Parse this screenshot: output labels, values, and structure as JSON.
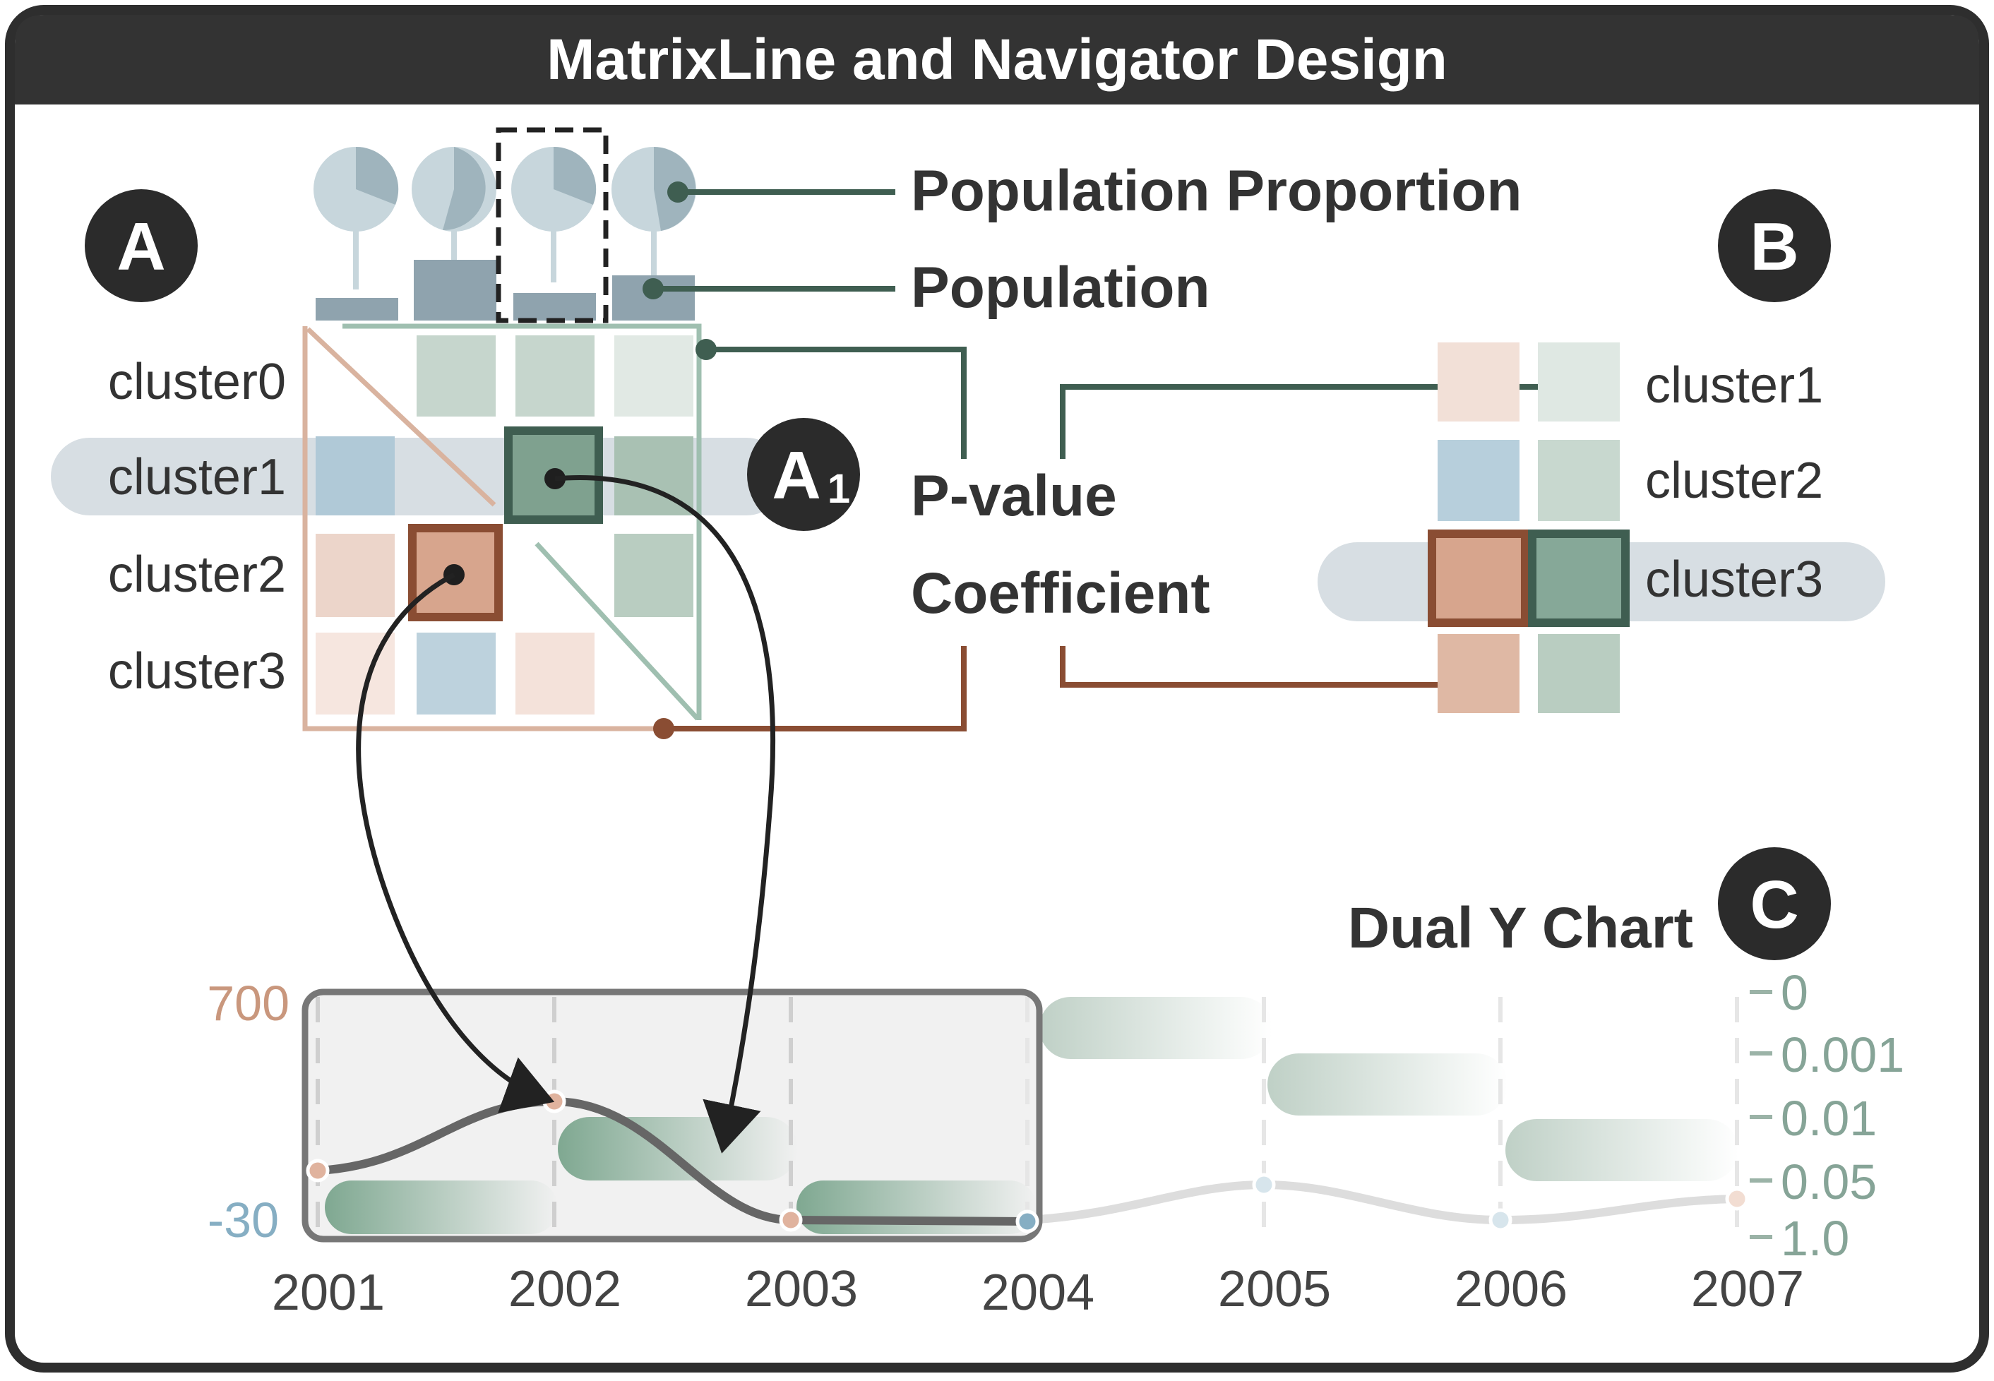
{
  "title": "MatrixLine and Navigator Design",
  "badges": {
    "a": "A",
    "a1": "A",
    "a1_sub": "1",
    "b": "B",
    "c": "C"
  },
  "legend": {
    "population_proportion": "Population Proportion",
    "population": "Population",
    "p_value": "P-value",
    "coefficient": "Coefficient"
  },
  "matrix_a": {
    "rows": [
      "cluster0",
      "cluster1",
      "cluster2",
      "cluster3"
    ]
  },
  "matrix_b": {
    "rows": [
      "cluster1",
      "cluster2",
      "cluster3"
    ]
  },
  "dual_chart": {
    "title": "Dual Y Chart",
    "left_axis": [
      "700",
      "-30"
    ],
    "right_axis": [
      "0",
      "0.001",
      "0.01",
      "0.05",
      "1.0"
    ],
    "years": [
      "2001",
      "2002",
      "2003",
      "2004",
      "2005",
      "2006",
      "2007"
    ]
  },
  "colors": {
    "frame": "#333333",
    "coefficient": "#c9977d",
    "coefficient_dark": "#8a4d33",
    "p_value": "#8fb5a2",
    "p_value_dark": "#3f5e51",
    "negative": "#8fb4cc",
    "pie": "#c7d6dc",
    "bar": "#8fa3ae"
  }
}
